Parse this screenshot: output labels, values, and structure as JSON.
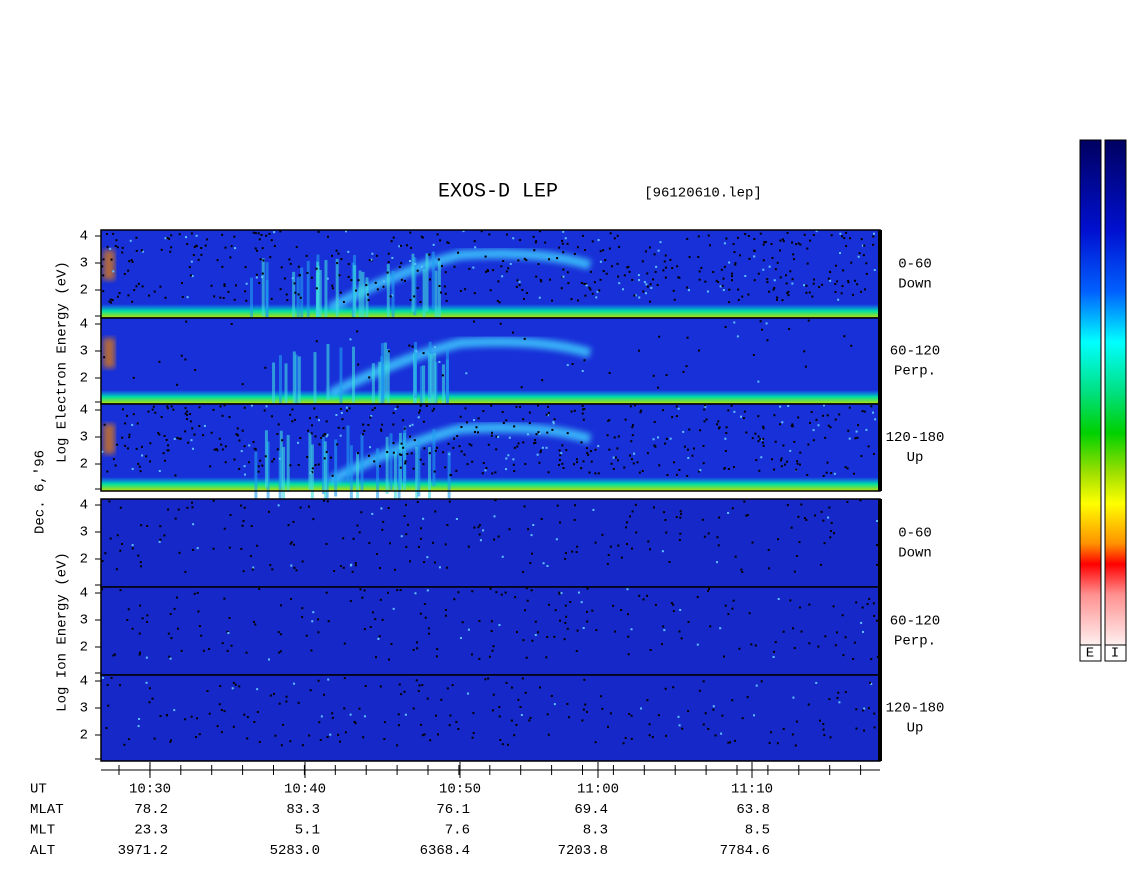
{
  "header": {
    "title": "EXOS-D LEP",
    "file": "[96120610.lep]"
  },
  "date": "Dec. 6,'96",
  "electron": {
    "ylabel": "Log  Electron  Energy (eV)",
    "panels": [
      {
        "range": "0-60",
        "dir": "Down"
      },
      {
        "range": "60-120",
        "dir": "Perp."
      },
      {
        "range": "120-180",
        "dir": "Up"
      }
    ]
  },
  "ion": {
    "ylabel": "Log  Ion  Energy (eV)",
    "panels": [
      {
        "range": "0-60",
        "dir": "Down"
      },
      {
        "range": "60-120",
        "dir": "Perp."
      },
      {
        "range": "120-180",
        "dir": "Up"
      }
    ]
  },
  "yticks": [
    4,
    3,
    2
  ],
  "rows": [
    {
      "label": "UT",
      "values": [
        "10:30",
        "10:40",
        "10:50",
        "11:00",
        "11:10"
      ]
    },
    {
      "label": "MLAT",
      "values": [
        "78.2",
        "83.3",
        "76.1",
        "69.4",
        "63.8"
      ]
    },
    {
      "label": "MLT",
      "values": [
        "23.3",
        "5.1",
        "7.6",
        "8.3",
        "8.5"
      ]
    },
    {
      "label": "ALT",
      "values": [
        "3971.2",
        "5283.0",
        "6368.4",
        "7203.8",
        "7784.6"
      ]
    }
  ],
  "colorbar": {
    "labels": [
      "E",
      "I"
    ]
  }
}
